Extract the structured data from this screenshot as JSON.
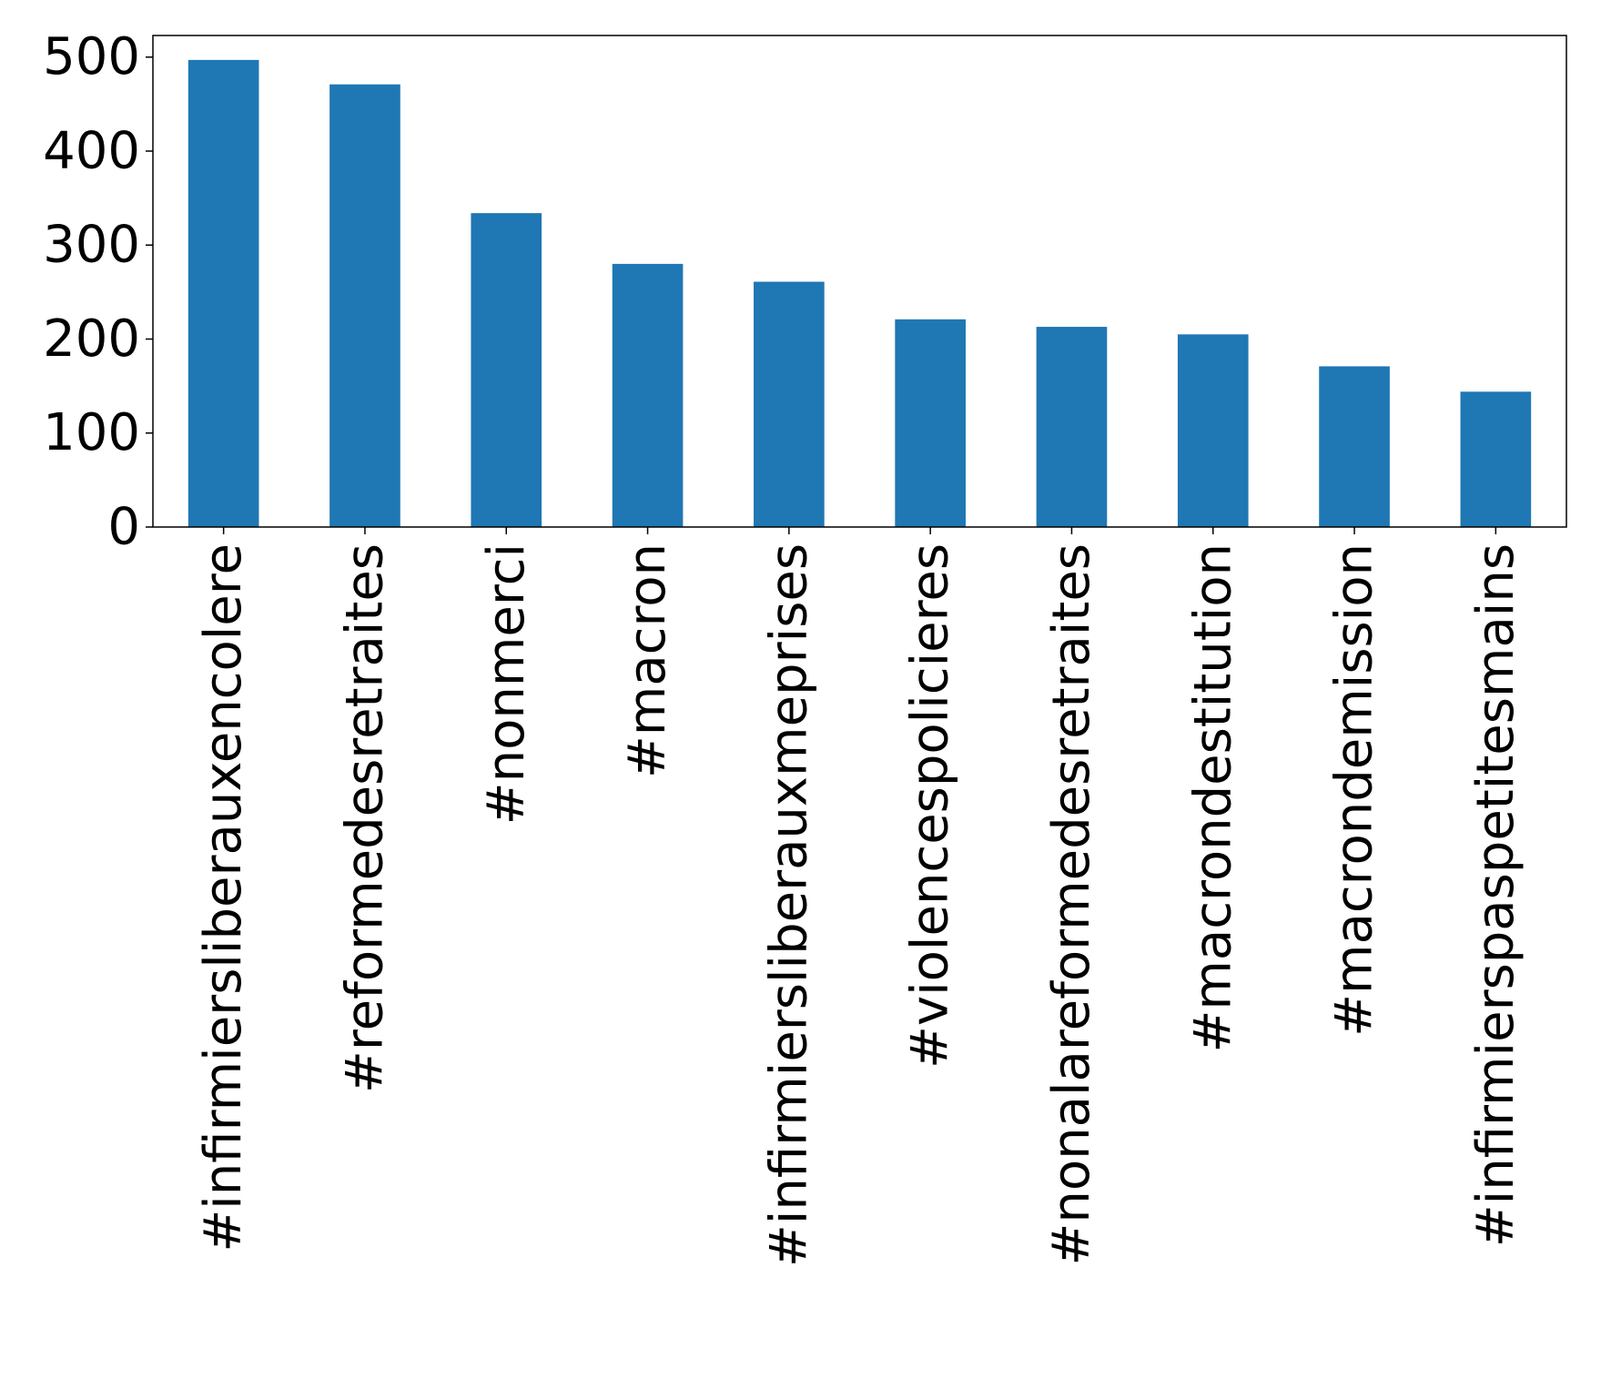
{
  "chart_data": {
    "type": "bar",
    "categories": [
      "#infirmiersliberauxencolere",
      "#reformedesretraites",
      "#nonmerci",
      "#macron",
      "#infirmiersliberauxmeprises",
      "#violencespolicieres",
      "#nonalareformedesretraites",
      "#macrondestitution",
      "#macrondemission",
      "#infirmierspaspetitesmains"
    ],
    "values": [
      497,
      471,
      334,
      280,
      261,
      221,
      213,
      205,
      171,
      144
    ],
    "title": "",
    "xlabel": "",
    "ylabel": "",
    "ylim": [
      0,
      523
    ],
    "yticks": [
      0,
      100,
      200,
      300,
      400,
      500
    ],
    "ytick_labels": [
      "0",
      "100",
      "200",
      "300",
      "400",
      "500"
    ],
    "grid": false,
    "bar_color": "#1f77b4",
    "axis_color": "#000000"
  }
}
